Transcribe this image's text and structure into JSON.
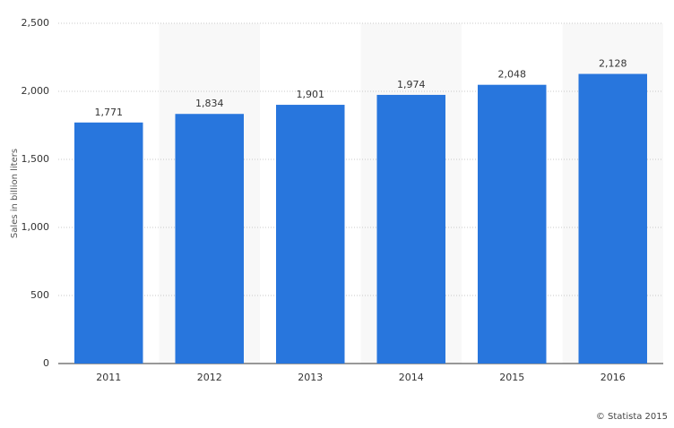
{
  "chart_data": {
    "type": "bar",
    "y_label": "Sales in billion liters",
    "credit": "© Statista 2015",
    "categories": [
      "2011",
      "2012",
      "2013",
      "2014",
      "2015",
      "2016"
    ],
    "values": [
      1771,
      1834,
      1901,
      1974,
      2048,
      2128
    ],
    "value_labels": [
      "1,771",
      "1,834",
      "1,901",
      "1,974",
      "2,048",
      "2,128"
    ],
    "color": "#2876dd",
    "ylim": [
      0,
      2500
    ],
    "yticks": [
      0,
      500,
      {
        "value": 1000,
        "label": "1,000"
      },
      {
        "value": 1500,
        "label": "1,500"
      },
      {
        "value": 2000,
        "label": "2,000"
      },
      {
        "value": 2500,
        "label": "2,500"
      }
    ],
    "grid": true
  }
}
